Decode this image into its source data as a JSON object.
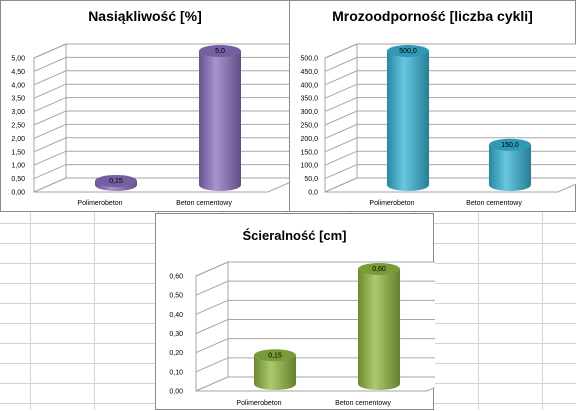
{
  "colors": {
    "purple": "#8b6fbf",
    "cyan": "#35b4d6",
    "green": "#8fb83f"
  },
  "chart_data": [
    {
      "id": "nasiakliwosc",
      "type": "bar",
      "title": "Nasiąkliwość [%]",
      "categories": [
        "Polimerobeton",
        "Beton cementowy"
      ],
      "values": [
        0.15,
        5.0
      ],
      "value_labels": [
        "0,15",
        "5,0"
      ],
      "y_ticks": [
        "0,00",
        "0,50",
        "1,00",
        "1,50",
        "2,00",
        "2,50",
        "3,00",
        "3,50",
        "4,00",
        "4,50",
        "5,00"
      ],
      "ylim": [
        0,
        5
      ],
      "grid": true,
      "color": "purple"
    },
    {
      "id": "mrozoodpornosc",
      "type": "bar",
      "title": "Mrozoodporność [liczba cykli]",
      "categories": [
        "Polimerobeton",
        "Beton cementowy"
      ],
      "values": [
        500,
        150
      ],
      "value_labels": [
        "500,0",
        "150,0"
      ],
      "y_ticks": [
        "0,0",
        "50,0",
        "100,0",
        "150,0",
        "200,0",
        "250,0",
        "300,0",
        "350,0",
        "400,0",
        "450,0",
        "500,0"
      ],
      "ylim": [
        0,
        500
      ],
      "grid": true,
      "color": "cyan"
    },
    {
      "id": "scieralnosc",
      "type": "bar",
      "title": "Ścieralność [cm]",
      "categories": [
        "Polimerobeton",
        "Beton cementowy"
      ],
      "values": [
        0.15,
        0.6
      ],
      "value_labels": [
        "0,15",
        "0,60"
      ],
      "y_ticks": [
        "0,00",
        "0,10",
        "0,20",
        "0,30",
        "0,40",
        "0,50",
        "0,60"
      ],
      "ylim": [
        0,
        0.6
      ],
      "grid": true,
      "color": "green"
    }
  ]
}
